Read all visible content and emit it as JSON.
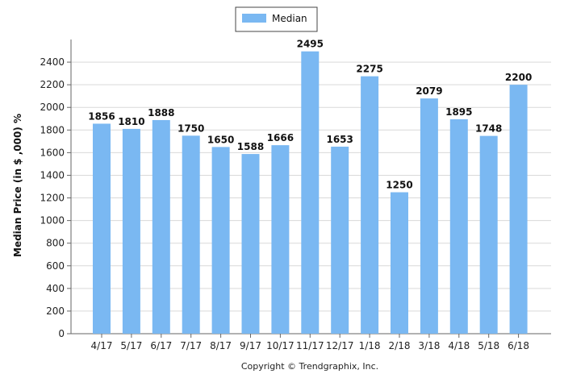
{
  "chart_data": {
    "type": "bar",
    "ylabel": "Median Price (in $ ,000) %",
    "categories": [
      "4/17",
      "5/17",
      "6/17",
      "7/17",
      "8/17",
      "9/17",
      "10/17",
      "11/17",
      "12/17",
      "1/18",
      "2/18",
      "3/18",
      "4/18",
      "5/18",
      "6/18"
    ],
    "series": [
      {
        "name": "Median",
        "values": [
          1856,
          1810,
          1888,
          1750,
          1650,
          1588,
          1666,
          2495,
          1653,
          2275,
          1250,
          2079,
          1895,
          1748,
          2200
        ]
      }
    ],
    "ylim": [
      0,
      2400
    ],
    "yticks": [
      0,
      200,
      400,
      600,
      800,
      1000,
      1200,
      1400,
      1600,
      1800,
      2000,
      2200,
      2400
    ],
    "grid": true,
    "legend_position": "top-center",
    "bar_color": "#7ab8f2"
  },
  "footer": "Copyright © Trendgraphix, Inc."
}
